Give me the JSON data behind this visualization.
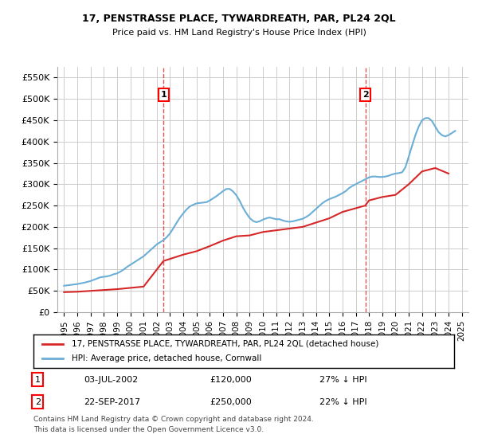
{
  "title": "17, PENSTRASSE PLACE, TYWARDREATH, PAR, PL24 2QL",
  "subtitle": "Price paid vs. HM Land Registry's House Price Index (HPI)",
  "ylabel": "",
  "xlabel": "",
  "ylim": [
    0,
    575000
  ],
  "yticks": [
    0,
    50000,
    100000,
    150000,
    200000,
    250000,
    300000,
    350000,
    400000,
    450000,
    500000,
    550000
  ],
  "ytick_labels": [
    "£0",
    "£50K",
    "£100K",
    "£150K",
    "£200K",
    "£250K",
    "£300K",
    "£350K",
    "£400K",
    "£450K",
    "£500K",
    "£550K"
  ],
  "xlim_start": 1994.5,
  "xlim_end": 2025.5,
  "xticks": [
    1995,
    1996,
    1997,
    1998,
    1999,
    2000,
    2001,
    2002,
    2003,
    2004,
    2005,
    2006,
    2007,
    2008,
    2009,
    2010,
    2011,
    2012,
    2013,
    2014,
    2015,
    2016,
    2017,
    2018,
    2019,
    2020,
    2021,
    2022,
    2023,
    2024,
    2025
  ],
  "hpi_color": "#6baed6",
  "price_color": "#d62728",
  "vline_color": "#d62728",
  "grid_color": "#cccccc",
  "bg_color": "#ffffff",
  "legend_box_color": "#000000",
  "transaction1_x": 2002.5,
  "transaction1_y": 120000,
  "transaction1_label": "1",
  "transaction1_date": "03-JUL-2002",
  "transaction1_price": "£120,000",
  "transaction1_hpi": "27% ↓ HPI",
  "transaction2_x": 2017.72,
  "transaction2_y": 250000,
  "transaction2_label": "2",
  "transaction2_date": "22-SEP-2017",
  "transaction2_price": "£250,000",
  "transaction2_hpi": "22% ↓ HPI",
  "legend_line1": "17, PENSTRASSE PLACE, TYWARDREATH, PAR, PL24 2QL (detached house)",
  "legend_line2": "HPI: Average price, detached house, Cornwall",
  "footer1": "Contains HM Land Registry data © Crown copyright and database right 2024.",
  "footer2": "This data is licensed under the Open Government Licence v3.0.",
  "hpi_data_x": [
    1995.0,
    1995.25,
    1995.5,
    1995.75,
    1996.0,
    1996.25,
    1996.5,
    1996.75,
    1997.0,
    1997.25,
    1997.5,
    1997.75,
    1998.0,
    1998.25,
    1998.5,
    1998.75,
    1999.0,
    1999.25,
    1999.5,
    1999.75,
    2000.0,
    2000.25,
    2000.5,
    2000.75,
    2001.0,
    2001.25,
    2001.5,
    2001.75,
    2002.0,
    2002.25,
    2002.5,
    2002.75,
    2003.0,
    2003.25,
    2003.5,
    2003.75,
    2004.0,
    2004.25,
    2004.5,
    2004.75,
    2005.0,
    2005.25,
    2005.5,
    2005.75,
    2006.0,
    2006.25,
    2006.5,
    2006.75,
    2007.0,
    2007.25,
    2007.5,
    2007.75,
    2008.0,
    2008.25,
    2008.5,
    2008.75,
    2009.0,
    2009.25,
    2009.5,
    2009.75,
    2010.0,
    2010.25,
    2010.5,
    2010.75,
    2011.0,
    2011.25,
    2011.5,
    2011.75,
    2012.0,
    2012.25,
    2012.5,
    2012.75,
    2013.0,
    2013.25,
    2013.5,
    2013.75,
    2014.0,
    2014.25,
    2014.5,
    2014.75,
    2015.0,
    2015.25,
    2015.5,
    2015.75,
    2016.0,
    2016.25,
    2016.5,
    2016.75,
    2017.0,
    2017.25,
    2017.5,
    2017.75,
    2018.0,
    2018.25,
    2018.5,
    2018.75,
    2019.0,
    2019.25,
    2019.5,
    2019.75,
    2020.0,
    2020.25,
    2020.5,
    2020.75,
    2021.0,
    2021.25,
    2021.5,
    2021.75,
    2022.0,
    2022.25,
    2022.5,
    2022.75,
    2023.0,
    2023.25,
    2023.5,
    2023.75,
    2024.0,
    2024.25,
    2024.5
  ],
  "hpi_data_y": [
    62000,
    63000,
    64000,
    65000,
    66000,
    67500,
    69000,
    71000,
    73000,
    76000,
    79000,
    82000,
    83000,
    84000,
    86000,
    89000,
    91000,
    95000,
    100000,
    106000,
    111000,
    116000,
    121000,
    126000,
    131000,
    138000,
    145000,
    152000,
    159000,
    164000,
    169000,
    176000,
    185000,
    197000,
    210000,
    222000,
    232000,
    241000,
    248000,
    252000,
    255000,
    256000,
    257000,
    258000,
    262000,
    267000,
    272000,
    278000,
    284000,
    289000,
    289000,
    283000,
    274000,
    261000,
    245000,
    232000,
    221000,
    214000,
    211000,
    213000,
    217000,
    220000,
    222000,
    220000,
    218000,
    218000,
    215000,
    213000,
    212000,
    213000,
    215000,
    217000,
    219000,
    223000,
    228000,
    235000,
    242000,
    249000,
    256000,
    261000,
    265000,
    268000,
    271000,
    275000,
    279000,
    284000,
    291000,
    296000,
    300000,
    304000,
    308000,
    312000,
    316000,
    318000,
    318000,
    317000,
    317000,
    318000,
    320000,
    323000,
    325000,
    326000,
    328000,
    340000,
    365000,
    390000,
    415000,
    435000,
    450000,
    455000,
    455000,
    448000,
    435000,
    422000,
    415000,
    412000,
    415000,
    420000,
    425000
  ],
  "price_data_x": [
    1995.0,
    1996.0,
    1997.0,
    1998.0,
    1999.0,
    2000.0,
    2001.0,
    2002.5,
    2003.0,
    2004.0,
    2005.0,
    2006.0,
    2007.0,
    2008.0,
    2009.0,
    2010.0,
    2011.0,
    2012.0,
    2013.0,
    2014.0,
    2015.0,
    2016.0,
    2017.72,
    2018.0,
    2019.0,
    2020.0,
    2021.0,
    2022.0,
    2023.0,
    2024.0
  ],
  "price_data_y": [
    47000,
    48000,
    50000,
    52000,
    54000,
    57000,
    60000,
    120000,
    125000,
    135000,
    143000,
    155000,
    168000,
    178000,
    180000,
    188000,
    192000,
    196000,
    200000,
    210000,
    220000,
    235000,
    250000,
    262000,
    270000,
    275000,
    300000,
    330000,
    338000,
    325000
  ]
}
